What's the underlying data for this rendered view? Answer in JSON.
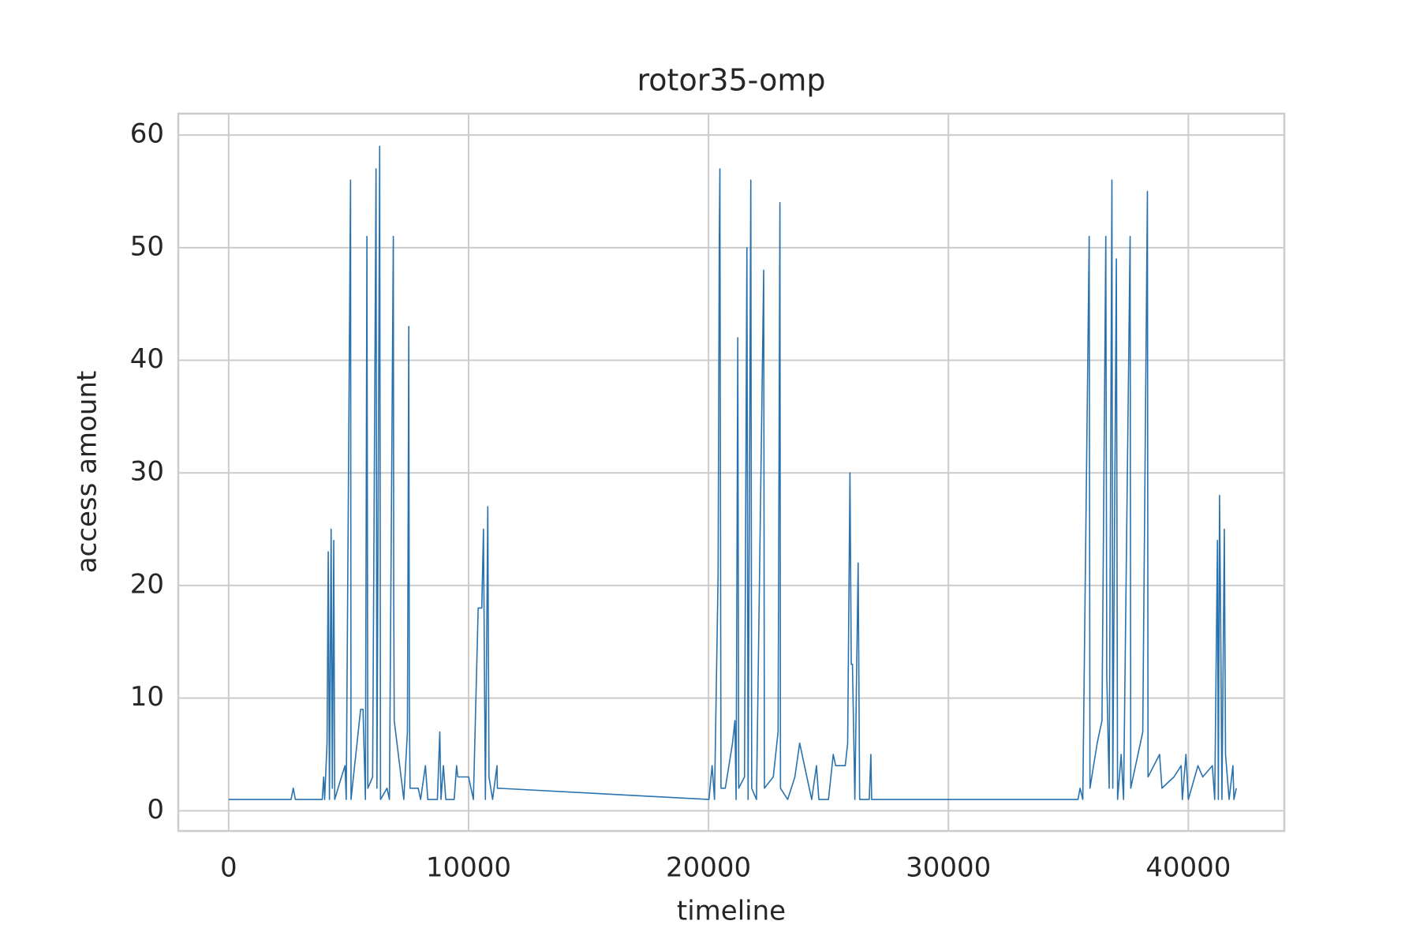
{
  "chart_data": {
    "type": "line",
    "title": "rotor35-omp",
    "xlabel": "timeline",
    "ylabel": "access amount",
    "x": [
      0,
      2600,
      2692,
      2780,
      3900,
      3960,
      4000,
      4100,
      4150,
      4200,
      4270,
      4320,
      4380,
      4420,
      4700,
      4850,
      4900,
      5080,
      5100,
      5500,
      5600,
      5700,
      5763,
      5800,
      6000,
      6142,
      6180,
      6294,
      6330,
      6600,
      6700,
      6863,
      6880,
      6900,
      7300,
      7450,
      7507,
      7530,
      7560,
      7900,
      8000,
      8200,
      8300,
      8700,
      8800,
      8850,
      8950,
      9050,
      9400,
      9500,
      9550,
      10000,
      10200,
      10400,
      10550,
      10620,
      10700,
      10800,
      10850,
      11000,
      11185,
      11200,
      20019,
      20150,
      20250,
      20400,
      20450,
      20474,
      20520,
      20700,
      21000,
      21100,
      21150,
      21220,
      21260,
      21500,
      21600,
      21650,
      21763,
      21800,
      22000,
      22300,
      22330,
      22700,
      22900,
      22976,
      23000,
      23300,
      23600,
      23800,
      24300,
      24500,
      24600,
      25000,
      25200,
      25300,
      25700,
      25800,
      25896,
      25950,
      26000,
      26100,
      26237,
      26300,
      26700,
      26767,
      26800,
      35400,
      35488,
      35600,
      35867,
      35900,
      36200,
      36400,
      36560,
      36600,
      36700,
      36815,
      36850,
      37000,
      37050,
      37200,
      37300,
      37573,
      37600,
      38000,
      38100,
      38294,
      38320,
      38800,
      38900,
      39400,
      39700,
      39750,
      39900,
      40000,
      40400,
      40600,
      41000,
      41100,
      41213,
      41250,
      41300,
      41350,
      41400,
      41500,
      41550,
      41700,
      41858,
      41900,
      42000
    ],
    "series": [
      {
        "name": "access amount",
        "color": "#2a72ad",
        "values": [
          1,
          1,
          2,
          1,
          1,
          3,
          1,
          6,
          23,
          1,
          25,
          2,
          24,
          1,
          3,
          4,
          1,
          56,
          1,
          9,
          9,
          1,
          51,
          2,
          3,
          57,
          2,
          59,
          1,
          2,
          1,
          51,
          19,
          8,
          1,
          7,
          43,
          10,
          2,
          2,
          1,
          4,
          1,
          1,
          7,
          1,
          4,
          1,
          1,
          4,
          3,
          3,
          1,
          18,
          18,
          25,
          1,
          27,
          3,
          1,
          4,
          2,
          1,
          4,
          1,
          21,
          51,
          57,
          2,
          2,
          6,
          8,
          1,
          42,
          2,
          3,
          50,
          1,
          56,
          2,
          1,
          48,
          2,
          3,
          7,
          54,
          2,
          1,
          3,
          6,
          1,
          4,
          1,
          1,
          5,
          4,
          4,
          6,
          30,
          13,
          13,
          1,
          22,
          1,
          1,
          5,
          1,
          1,
          2,
          1,
          51,
          2,
          6,
          8,
          51,
          12,
          2,
          56,
          2,
          49,
          1,
          5,
          1,
          51,
          2,
          6,
          7,
          55,
          3,
          5,
          2,
          3,
          4,
          1,
          5,
          1,
          4,
          3,
          4,
          1,
          24,
          1,
          28,
          16,
          1,
          25,
          5,
          1,
          4,
          1,
          2
        ]
      }
    ],
    "xlim": [
      -2100,
      44000
    ],
    "ylim": [
      -1.8,
      61.9
    ],
    "xticks": [
      0,
      10000,
      20000,
      30000,
      40000
    ],
    "yticks": [
      0,
      10,
      20,
      30,
      40,
      50,
      60
    ],
    "grid": true
  }
}
